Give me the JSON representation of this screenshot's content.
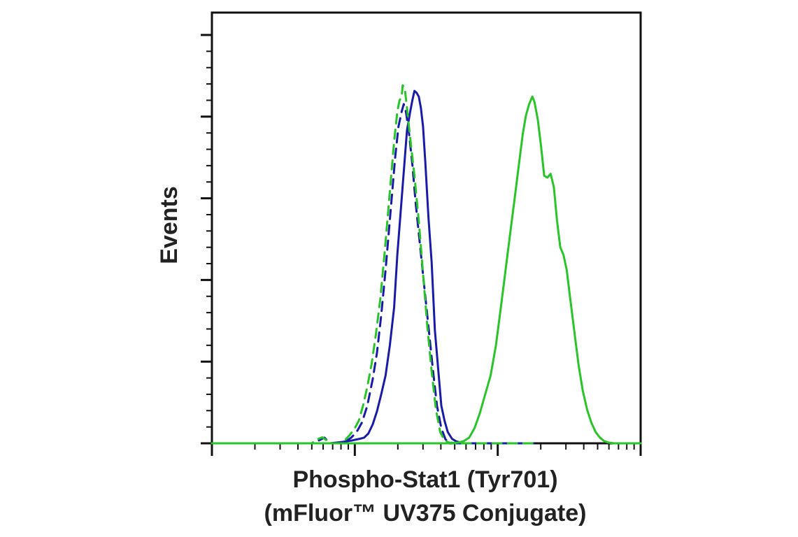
{
  "chart_data": {
    "type": "line",
    "title": "",
    "xlabel_line1": "Phospho-Stat1 (Tyr701)",
    "xlabel_line2": "(mFluor™ UV375 Conjugate)",
    "ylabel": "Events",
    "x_scale": "log",
    "x_range": [
      0,
      30
    ],
    "y_range": [
      0,
      100
    ],
    "x_ticks_numeric_labels": false,
    "y_ticks_numeric_labels": false,
    "legend": "none",
    "grid": false,
    "series": [
      {
        "color": "#1a1aa8",
        "style": "solid",
        "points": [
          [
            0,
            0
          ],
          [
            5,
            0
          ],
          [
            10,
            0
          ],
          [
            11,
            0
          ],
          [
            12,
            0.3
          ],
          [
            13,
            0.7
          ],
          [
            13.8,
            1.2
          ],
          [
            14.2,
            1.5
          ],
          [
            14.6,
            2.6
          ],
          [
            15.0,
            5.0
          ],
          [
            15.4,
            8.5
          ],
          [
            15.8,
            13.0
          ],
          [
            16.2,
            18.0
          ],
          [
            16.6,
            26.0
          ],
          [
            17.0,
            36.0
          ],
          [
            17.3,
            50.0
          ],
          [
            17.6,
            61.0
          ],
          [
            17.9,
            72.0
          ],
          [
            18.2,
            83.0
          ],
          [
            18.5,
            88.0
          ],
          [
            18.7,
            91.0
          ],
          [
            18.9,
            93.5
          ],
          [
            19.1,
            93.0
          ],
          [
            19.3,
            92.0
          ],
          [
            19.5,
            89.0
          ],
          [
            19.7,
            84.0
          ],
          [
            19.9,
            75.0
          ],
          [
            20.2,
            60.0
          ],
          [
            20.5,
            48.0
          ],
          [
            20.8,
            30.0
          ],
          [
            21.1,
            20.0
          ],
          [
            21.4,
            10.0
          ],
          [
            21.7,
            6.0
          ],
          [
            22.0,
            3.0
          ],
          [
            22.4,
            1.2
          ],
          [
            22.8,
            0.5
          ],
          [
            23.5,
            0
          ],
          [
            30,
            0
          ]
        ]
      },
      {
        "color": "#1a1aa8",
        "style": "dashed",
        "points": [
          [
            0,
            0
          ],
          [
            5,
            0
          ],
          [
            9.5,
            0
          ],
          [
            10,
            0.8
          ],
          [
            10.5,
            1.5
          ],
          [
            11,
            0
          ],
          [
            12.0,
            0
          ],
          [
            12.5,
            0.5
          ],
          [
            13.0,
            1.5
          ],
          [
            13.5,
            3.0
          ],
          [
            14.0,
            5.5
          ],
          [
            14.5,
            10.0
          ],
          [
            15.0,
            17.0
          ],
          [
            15.4,
            24.0
          ],
          [
            15.8,
            34.0
          ],
          [
            16.2,
            46.0
          ],
          [
            16.5,
            56.0
          ],
          [
            16.8,
            66.0
          ],
          [
            17.1,
            76.0
          ],
          [
            17.4,
            84.0
          ],
          [
            17.7,
            88.0
          ],
          [
            17.9,
            90.0
          ],
          [
            18.1,
            88.0
          ],
          [
            18.4,
            82.0
          ],
          [
            18.7,
            74.0
          ],
          [
            19.0,
            64.0
          ],
          [
            19.4,
            53.0
          ],
          [
            19.8,
            42.0
          ],
          [
            20.2,
            31.0
          ],
          [
            20.6,
            20.0
          ],
          [
            21.0,
            10.0
          ],
          [
            21.4,
            4.0
          ],
          [
            21.8,
            1.0
          ],
          [
            22.2,
            0.3
          ],
          [
            22.6,
            0
          ],
          [
            30,
            0
          ]
        ]
      },
      {
        "color": "#28c428",
        "style": "dashed",
        "points": [
          [
            0,
            0
          ],
          [
            4.5,
            0
          ],
          [
            9.3,
            0
          ],
          [
            9.8,
            1.0
          ],
          [
            10.3,
            1.6
          ],
          [
            10.8,
            0.6
          ],
          [
            11.2,
            0
          ],
          [
            12.0,
            0
          ],
          [
            12.4,
            0.8
          ],
          [
            12.8,
            2.0
          ],
          [
            13.3,
            3.8
          ],
          [
            13.7,
            6.0
          ],
          [
            14.1,
            10.0
          ],
          [
            14.5,
            15.0
          ],
          [
            14.9,
            21.0
          ],
          [
            15.3,
            29.0
          ],
          [
            15.7,
            38.0
          ],
          [
            16.1,
            50.0
          ],
          [
            16.4,
            60.0
          ],
          [
            16.7,
            70.0
          ],
          [
            17.0,
            80.0
          ],
          [
            17.3,
            88.0
          ],
          [
            17.5,
            91.0
          ],
          [
            17.7,
            92.0
          ],
          [
            17.8,
            95.0
          ],
          [
            18.0,
            94.0
          ],
          [
            18.2,
            89.0
          ],
          [
            18.5,
            81.0
          ],
          [
            18.9,
            71.0
          ],
          [
            19.3,
            59.0
          ],
          [
            19.7,
            45.0
          ],
          [
            20.1,
            31.0
          ],
          [
            20.5,
            19.0
          ],
          [
            20.9,
            9.0
          ],
          [
            21.3,
            3.0
          ],
          [
            21.7,
            0.8
          ],
          [
            22.1,
            0.2
          ],
          [
            22.5,
            0
          ],
          [
            30,
            0
          ]
        ]
      },
      {
        "color": "#28c428",
        "style": "solid",
        "points": [
          [
            0,
            0
          ],
          [
            17.0,
            0
          ],
          [
            17.5,
            0
          ],
          [
            18.0,
            0
          ],
          [
            19.0,
            0
          ],
          [
            21.0,
            0
          ],
          [
            22.0,
            0
          ],
          [
            23.0,
            0.2
          ],
          [
            23.5,
            0.6
          ],
          [
            24.0,
            1.5
          ],
          [
            24.5,
            4.0
          ],
          [
            25.0,
            8.0
          ],
          [
            25.5,
            13.0
          ],
          [
            26.0,
            18.0
          ],
          [
            26.5,
            26.0
          ],
          [
            27.0,
            37.0
          ],
          [
            27.4,
            46.0
          ],
          [
            27.8,
            55.0
          ],
          [
            28.2,
            64.0
          ],
          [
            28.6,
            73.0
          ],
          [
            29.0,
            82.0
          ],
          [
            29.3,
            87.0
          ],
          [
            29.6,
            90.0
          ],
          [
            29.9,
            92.0
          ],
          [
            30.1,
            90.5
          ],
          [
            30.4,
            86.0
          ],
          [
            30.7,
            79.0
          ],
          [
            31.0,
            71.0
          ],
          [
            31.3,
            70.5
          ],
          [
            31.6,
            71.5
          ],
          [
            31.9,
            68.0
          ],
          [
            32.2,
            59.0
          ],
          [
            32.5,
            52.0
          ],
          [
            32.8,
            50.0
          ],
          [
            33.1,
            46.0
          ],
          [
            33.4,
            39.0
          ],
          [
            33.8,
            30.0
          ],
          [
            34.2,
            21.0
          ],
          [
            34.6,
            14.0
          ],
          [
            35.0,
            9.0
          ],
          [
            35.4,
            5.5
          ],
          [
            35.8,
            3.0
          ],
          [
            36.2,
            1.5
          ],
          [
            36.6,
            0.6
          ],
          [
            37.0,
            0.2
          ],
          [
            37.5,
            0
          ],
          [
            40,
            0
          ]
        ]
      }
    ]
  }
}
